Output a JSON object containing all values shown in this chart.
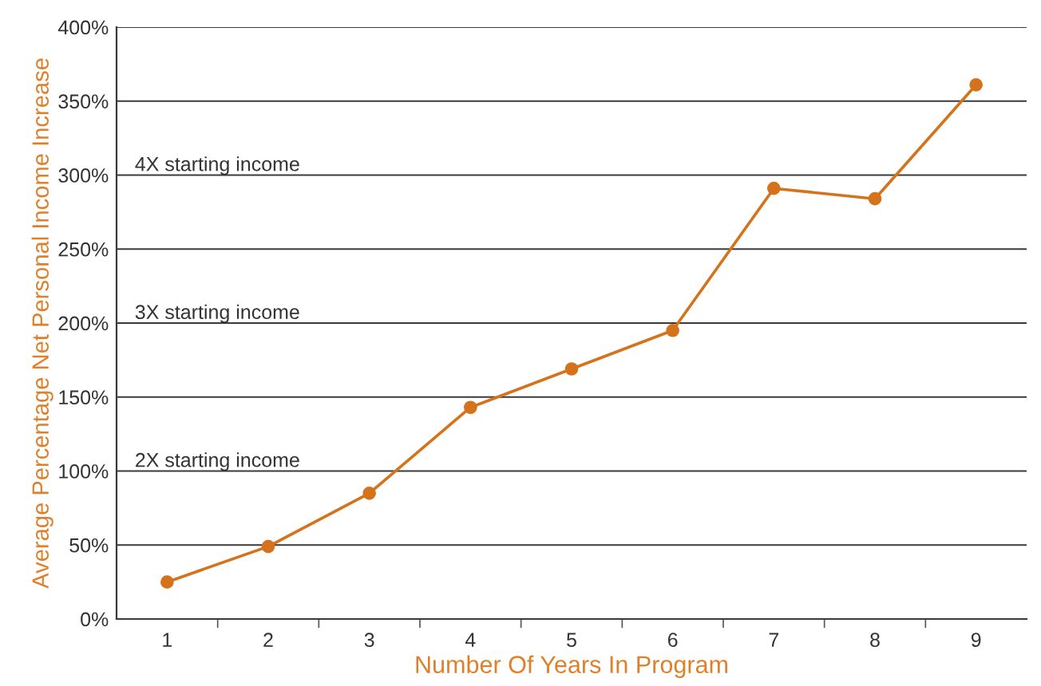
{
  "chart_data": {
    "type": "line",
    "xlabel": "Number Of Years In Program",
    "ylabel": "Average Percentage Net Personal Income Increase",
    "categories": [
      "1",
      "2",
      "3",
      "4",
      "5",
      "6",
      "7",
      "8",
      "9"
    ],
    "series": [
      {
        "color": "#d4731c",
        "values": [
          25,
          49,
          85,
          143,
          169,
          195,
          291,
          284,
          361
        ]
      }
    ],
    "ylim": [
      0,
      400
    ],
    "yticks": [
      {
        "value": 0,
        "label": "0%"
      },
      {
        "value": 50,
        "label": "50%"
      },
      {
        "value": 100,
        "label": "100%"
      },
      {
        "value": 150,
        "label": "150%"
      },
      {
        "value": 200,
        "label": "200%"
      },
      {
        "value": 250,
        "label": "250%"
      },
      {
        "value": 300,
        "label": "300%"
      },
      {
        "value": 350,
        "label": "350%"
      },
      {
        "value": 400,
        "label": "400%"
      }
    ],
    "annotations": [
      "2X starting income",
      "3X starting income",
      "4X starting income"
    ],
    "grid": "y",
    "marker": "circle",
    "line_style": "solid",
    "legend": false
  }
}
